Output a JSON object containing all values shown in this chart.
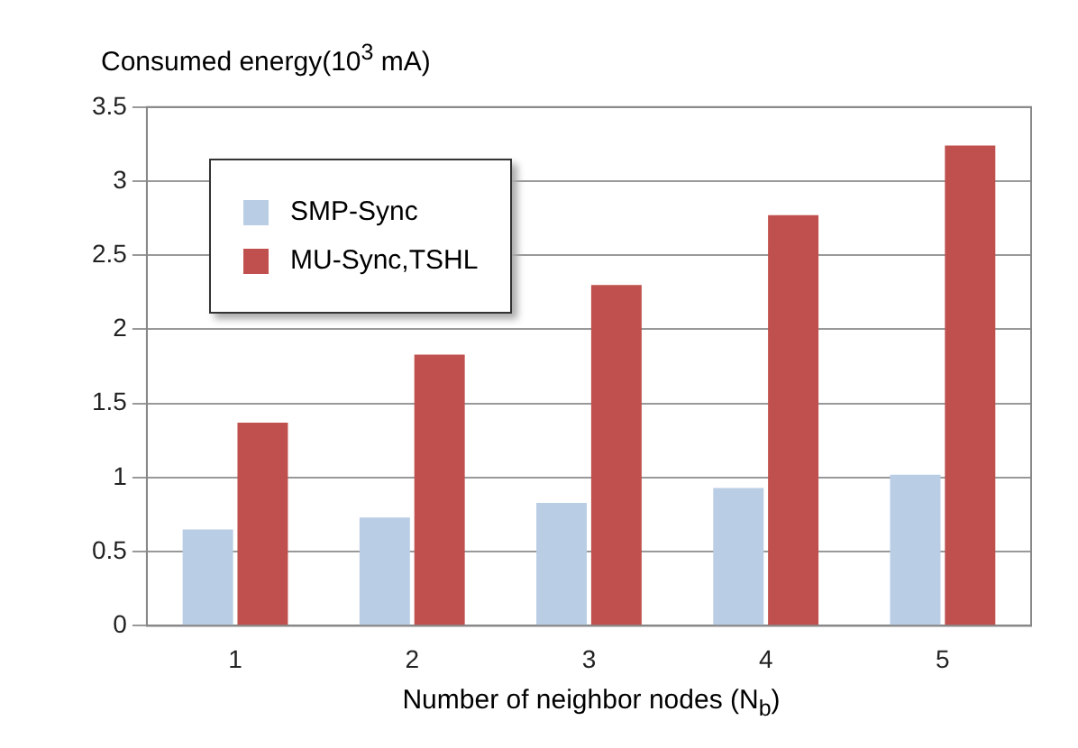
{
  "chart_data": {
    "type": "bar",
    "ylabel": "Consumed energy(10$^{3}$ mA)",
    "xlabel": "Number of neighbor nodes (N$_{b}$)",
    "categories": [
      "1",
      "2",
      "3",
      "4",
      "5"
    ],
    "series": [
      {
        "name": "SMP-Sync",
        "color": "#b9cde5",
        "values": [
          0.65,
          0.73,
          0.83,
          0.93,
          1.02
        ]
      },
      {
        "name": "MU-Sync,TSHL",
        "color": "#c0504d",
        "values": [
          1.37,
          1.83,
          2.3,
          2.77,
          3.24
        ]
      }
    ],
    "ylim": [
      0,
      3.5
    ],
    "yticks": [
      0,
      0.5,
      1,
      1.5,
      2,
      2.5,
      3,
      3.5
    ],
    "grid": "y",
    "legend": "top left"
  }
}
